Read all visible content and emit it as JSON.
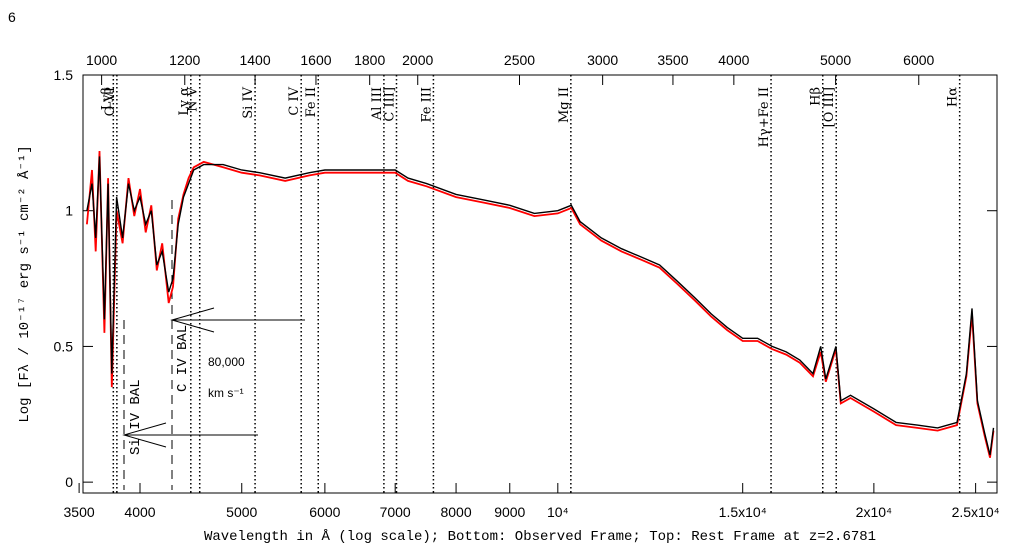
{
  "page_number": "6",
  "chart_data": {
    "type": "line",
    "x_label": "Wavelength in Å (log scale); Bottom: Observed Frame; Top: Rest Frame at z=2.6781",
    "y_label": "Log [Fλ / 10⁻¹⁷ erg s⁻¹ cm⁻² Å⁻¹]",
    "x": [
      3560,
      3600,
      3630,
      3660,
      3700,
      3730,
      3760,
      3800,
      3850,
      3900,
      3950,
      4000,
      4050,
      4100,
      4150,
      4200,
      4260,
      4300,
      4350,
      4400,
      4450,
      4500,
      4600,
      4800,
      5000,
      5200,
      5500,
      5800,
      6000,
      6500,
      7000,
      7200,
      7500,
      8000,
      8500,
      9000,
      9500,
      10000,
      10300,
      10500,
      11000,
      11500,
      12000,
      12500,
      13000,
      13500,
      14000,
      14500,
      15000,
      15500,
      16000,
      16500,
      17000,
      17500,
      17800,
      18000,
      18400,
      18600,
      19000,
      20000,
      21000,
      22000,
      23000,
      24000,
      24500,
      24800,
      25100,
      25500,
      25800,
      26000
    ],
    "series": [
      {
        "color": "#ff0000",
        "values": [
          0.95,
          1.15,
          0.85,
          1.22,
          0.55,
          1.12,
          0.35,
          1.0,
          0.88,
          1.12,
          0.98,
          1.08,
          0.92,
          1.02,
          0.78,
          0.88,
          0.66,
          0.72,
          0.97,
          1.06,
          1.12,
          1.16,
          1.18,
          1.16,
          1.14,
          1.13,
          1.11,
          1.13,
          1.14,
          1.14,
          1.14,
          1.11,
          1.09,
          1.05,
          1.03,
          1.01,
          0.98,
          0.99,
          1.01,
          0.95,
          0.89,
          0.85,
          0.82,
          0.79,
          0.73,
          0.67,
          0.61,
          0.56,
          0.52,
          0.52,
          0.49,
          0.47,
          0.44,
          0.39,
          0.48,
          0.37,
          0.49,
          0.29,
          0.31,
          0.26,
          0.21,
          0.2,
          0.19,
          0.21,
          0.39,
          0.62,
          0.29,
          0.17,
          0.09,
          0.19
        ]
      },
      {
        "color": "#000000",
        "values": [
          1.0,
          1.1,
          0.9,
          1.2,
          0.6,
          1.1,
          0.4,
          1.05,
          0.9,
          1.1,
          1.0,
          1.05,
          0.95,
          1.0,
          0.8,
          0.85,
          0.7,
          0.75,
          0.95,
          1.05,
          1.1,
          1.15,
          1.17,
          1.17,
          1.15,
          1.14,
          1.12,
          1.14,
          1.15,
          1.15,
          1.15,
          1.12,
          1.1,
          1.06,
          1.04,
          1.02,
          0.99,
          1.0,
          1.02,
          0.96,
          0.9,
          0.86,
          0.83,
          0.8,
          0.74,
          0.68,
          0.62,
          0.57,
          0.53,
          0.53,
          0.5,
          0.48,
          0.45,
          0.4,
          0.5,
          0.38,
          0.5,
          0.3,
          0.32,
          0.27,
          0.22,
          0.21,
          0.2,
          0.22,
          0.4,
          0.64,
          0.3,
          0.18,
          0.1,
          0.2
        ]
      }
    ],
    "xlim": [
      3530,
      26200
    ],
    "x_log": true,
    "xticks": [
      3500,
      4000,
      5000,
      6000,
      7000,
      8000,
      9000,
      {
        "value": 10000,
        "label": "10⁴"
      },
      {
        "value": 15000,
        "label": "1.5x10⁴"
      },
      {
        "value": 20000,
        "label": "2x10⁴"
      },
      {
        "value": 25000,
        "label": "2.5x10⁴"
      }
    ],
    "x2lim": [
      960,
      7123
    ],
    "x2ticks": [
      1000,
      1200,
      1400,
      1600,
      1800,
      2000,
      2500,
      3000,
      3500,
      4000,
      5000,
      6000
    ],
    "ylim": [
      -0.04,
      1.5
    ],
    "yticks": [
      0,
      0.5,
      1,
      1.5
    ],
    "lines": [
      {
        "label": "Lyβ",
        "rest": 1026
      },
      {
        "label": "O VI",
        "rest": 1034
      },
      {
        "label": "Ly α",
        "rest": 1216
      },
      {
        "label": "N V",
        "rest": 1240
      },
      {
        "label": "Si IV",
        "rest": 1400
      },
      {
        "label": "C IV",
        "rest": 1549
      },
      {
        "label": "Fe II",
        "rest": 1608
      },
      {
        "label": "Al III",
        "rest": 1857
      },
      {
        "label": "C III]",
        "rest": 1909
      },
      {
        "label": "Fe III",
        "rest": 2070
      },
      {
        "label": "Mg II",
        "rest": 2798
      },
      {
        "label": "Hγ+Fe II",
        "rest": 4340
      },
      {
        "label": "Hβ",
        "rest": 4861
      },
      {
        "label": "[O III]",
        "rest": 5007
      },
      {
        "label": "Hα",
        "rest": 6563
      }
    ],
    "annotations": {
      "civ_bal": "C IV BAL",
      "siiv_bal": "Si IV BAL",
      "velocity": "80,000",
      "velocity_unit": "km s⁻¹"
    }
  }
}
